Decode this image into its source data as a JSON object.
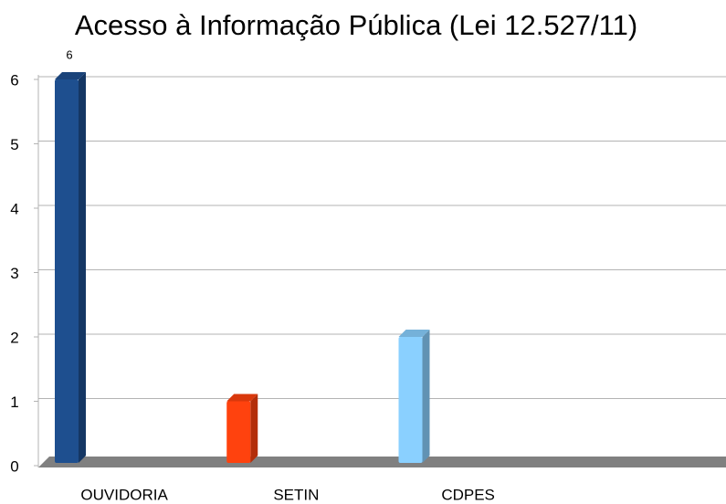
{
  "chart_data": {
    "type": "bar",
    "title": "Acesso à Informação Pública (Lei 12.527/11)",
    "categories": [
      "OUVIDORIA",
      "SETIN",
      "CDPES",
      null
    ],
    "values": [
      6,
      1,
      2,
      null
    ],
    "value_labels": [
      "6",
      null,
      null,
      null
    ],
    "colors": [
      "#1e4f8f",
      "#ff420e",
      "#8ad0ff"
    ],
    "ylim": [
      0,
      6
    ],
    "yticks": [
      0,
      1,
      2,
      3,
      4,
      5,
      6
    ],
    "grid": true
  }
}
